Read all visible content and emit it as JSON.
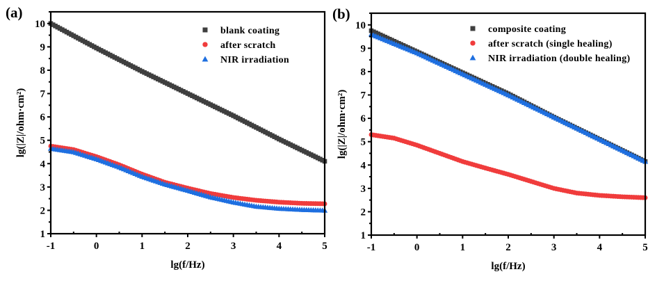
{
  "chart_data": [
    {
      "type": "scatter",
      "panel_label": "(a)",
      "xlabel": "lg(f/Hz)",
      "ylabel": "lg(|Z|/ohm·cm²)",
      "xlim": [
        -1,
        5
      ],
      "ylim": [
        1,
        10.5
      ],
      "xticks": [
        "-1",
        "0",
        "1",
        "2",
        "3",
        "4",
        "5"
      ],
      "yticks": [
        "1",
        "2",
        "3",
        "4",
        "5",
        "6",
        "7",
        "8",
        "9",
        "10"
      ],
      "grid": false,
      "legend_position": "top-right",
      "series": [
        {
          "name": "blank coating",
          "marker": "square",
          "color": "#3f3f3f",
          "x": [
            -1,
            0,
            1,
            2,
            3,
            4,
            5
          ],
          "y": [
            10.0,
            8.95,
            7.95,
            7.0,
            6.05,
            5.05,
            4.1
          ]
        },
        {
          "name": "after scratch",
          "marker": "circle",
          "color": "#f03c3c",
          "x": [
            -1,
            -0.5,
            0,
            0.5,
            1,
            1.5,
            2,
            2.5,
            3,
            3.5,
            4,
            4.5,
            5
          ],
          "y": [
            4.75,
            4.6,
            4.3,
            3.95,
            3.55,
            3.2,
            2.95,
            2.72,
            2.55,
            2.43,
            2.35,
            2.3,
            2.28
          ]
        },
        {
          "name": "NIR irradiation",
          "marker": "triangle",
          "color": "#1e6fe0",
          "x": [
            -1,
            -0.5,
            0,
            0.5,
            1,
            1.5,
            2,
            2.5,
            3,
            3.5,
            4,
            4.5,
            5
          ],
          "y": [
            4.65,
            4.5,
            4.2,
            3.85,
            3.45,
            3.12,
            2.85,
            2.57,
            2.35,
            2.17,
            2.08,
            2.03,
            2.0
          ]
        }
      ]
    },
    {
      "type": "scatter",
      "panel_label": "(b)",
      "xlabel": "lg(f/Hz)",
      "ylabel": "lg(|Z|/ohm·cm²)",
      "xlim": [
        -1,
        5
      ],
      "ylim": [
        1,
        10.5
      ],
      "xticks": [
        "-1",
        "0",
        "1",
        "2",
        "3",
        "4",
        "5"
      ],
      "yticks": [
        "1",
        "2",
        "3",
        "4",
        "5",
        "6",
        "7",
        "8",
        "9",
        "10"
      ],
      "grid": false,
      "legend_position": "top-right",
      "series": [
        {
          "name": "composite coating",
          "marker": "square",
          "color": "#3f3f3f",
          "x": [
            -1,
            0,
            1,
            2,
            3,
            4,
            5
          ],
          "y": [
            9.75,
            8.85,
            7.95,
            7.05,
            6.05,
            5.1,
            4.15
          ]
        },
        {
          "name": "after scratch (single healing)",
          "marker": "circle",
          "color": "#f03c3c",
          "x": [
            -1,
            -0.5,
            0,
            0.5,
            1,
            1.5,
            2,
            2.5,
            3,
            3.5,
            4,
            4.5,
            5
          ],
          "y": [
            5.3,
            5.15,
            4.85,
            4.5,
            4.15,
            3.87,
            3.6,
            3.3,
            3.0,
            2.8,
            2.7,
            2.64,
            2.6
          ]
        },
        {
          "name": "NIR irradiation (double healing)",
          "marker": "triangle",
          "color": "#1e6fe0",
          "x": [
            -1,
            0,
            1,
            2,
            3,
            4,
            5
          ],
          "y": [
            9.6,
            8.8,
            7.9,
            7.0,
            6.05,
            5.1,
            4.15
          ]
        }
      ]
    }
  ]
}
